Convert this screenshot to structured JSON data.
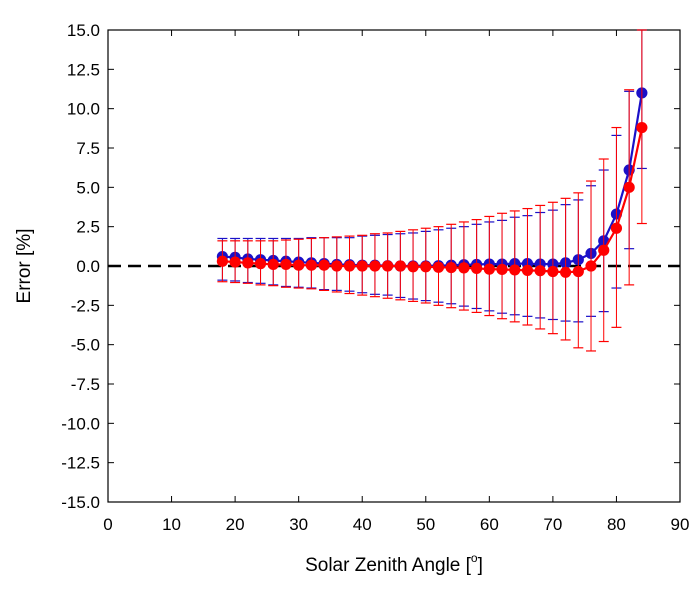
{
  "chart_data": {
    "type": "scatter",
    "xlabel": "Solar Zenith Angle [",
    "xlabel_unit_sup": "o",
    "xlabel_close": "]",
    "ylabel": "Error [%]",
    "xlim": [
      0,
      90
    ],
    "ylim": [
      -15,
      15
    ],
    "x_ticks": [
      "0",
      "10",
      "20",
      "30",
      "40",
      "50",
      "60",
      "70",
      "80",
      "90"
    ],
    "y_ticks": [
      "15.0",
      "12.5",
      "10.0",
      "7.5",
      "5.0",
      "2.5",
      "0.0",
      "-2.5",
      "-5.0",
      "-7.5",
      "-10.0",
      "-12.5",
      "-15.0"
    ],
    "grid": false,
    "reference_line": {
      "y": 0,
      "style": "dashed",
      "color": "#000000"
    },
    "x": [
      18,
      20,
      22,
      24,
      26,
      28,
      30,
      32,
      34,
      36,
      38,
      40,
      42,
      44,
      46,
      48,
      50,
      52,
      54,
      56,
      58,
      60,
      62,
      64,
      66,
      68,
      70,
      72,
      74,
      76,
      78,
      80,
      82,
      84
    ],
    "series": [
      {
        "color": "#1a10c8",
        "values": [
          0.6,
          0.55,
          0.45,
          0.4,
          0.35,
          0.3,
          0.25,
          0.2,
          0.15,
          0.1,
          0.08,
          0.05,
          0.05,
          0.02,
          0.0,
          0.0,
          0.0,
          0.02,
          0.05,
          0.08,
          0.1,
          0.12,
          0.12,
          0.15,
          0.15,
          0.12,
          0.12,
          0.2,
          0.4,
          0.8,
          1.6,
          3.3,
          6.1,
          11.0
        ],
        "err_low": [
          -0.9,
          -0.95,
          -1.05,
          -1.1,
          -1.2,
          -1.3,
          -1.35,
          -1.4,
          -1.5,
          -1.55,
          -1.6,
          -1.7,
          -1.8,
          -1.85,
          -2.0,
          -2.1,
          -2.2,
          -2.3,
          -2.4,
          -2.55,
          -2.7,
          -2.85,
          -3.0,
          -3.1,
          -3.2,
          -3.3,
          -3.4,
          -3.5,
          -3.55,
          -3.2,
          -2.9,
          -1.4,
          1.1,
          6.2
        ],
        "err_high": [
          1.75,
          1.75,
          1.75,
          1.75,
          1.75,
          1.75,
          1.75,
          1.8,
          1.8,
          1.8,
          1.8,
          1.9,
          1.95,
          2.0,
          2.05,
          2.1,
          2.2,
          2.3,
          2.4,
          2.5,
          2.65,
          2.8,
          2.9,
          3.1,
          3.2,
          3.4,
          3.55,
          3.9,
          4.2,
          5.1,
          6.1,
          8.3,
          11.1,
          15.0
        ]
      },
      {
        "color": "#ff0000",
        "values": [
          0.3,
          0.25,
          0.2,
          0.15,
          0.1,
          0.1,
          0.05,
          0.05,
          0.05,
          0.0,
          0.0,
          0.0,
          0.0,
          0.0,
          0.0,
          -0.05,
          -0.05,
          -0.08,
          -0.1,
          -0.12,
          -0.15,
          -0.2,
          -0.22,
          -0.25,
          -0.28,
          -0.3,
          -0.35,
          -0.4,
          -0.35,
          0.0,
          1.0,
          2.4,
          5.0,
          8.8
        ],
        "err_low": [
          -1.0,
          -1.05,
          -1.1,
          -1.2,
          -1.25,
          -1.35,
          -1.4,
          -1.45,
          -1.55,
          -1.65,
          -1.75,
          -1.85,
          -1.95,
          -2.05,
          -2.15,
          -2.25,
          -2.35,
          -2.5,
          -2.65,
          -2.8,
          -2.95,
          -3.15,
          -3.35,
          -3.55,
          -3.75,
          -4.0,
          -4.3,
          -4.7,
          -5.2,
          -5.4,
          -4.8,
          -3.9,
          -1.2,
          2.7
        ],
        "err_high": [
          1.6,
          1.6,
          1.6,
          1.6,
          1.6,
          1.65,
          1.7,
          1.75,
          1.8,
          1.85,
          1.9,
          1.95,
          2.05,
          2.1,
          2.2,
          2.3,
          2.4,
          2.5,
          2.65,
          2.8,
          2.95,
          3.15,
          3.35,
          3.5,
          3.65,
          3.85,
          4.05,
          4.3,
          4.65,
          5.4,
          6.8,
          8.8,
          11.2,
          15.0
        ]
      }
    ]
  }
}
